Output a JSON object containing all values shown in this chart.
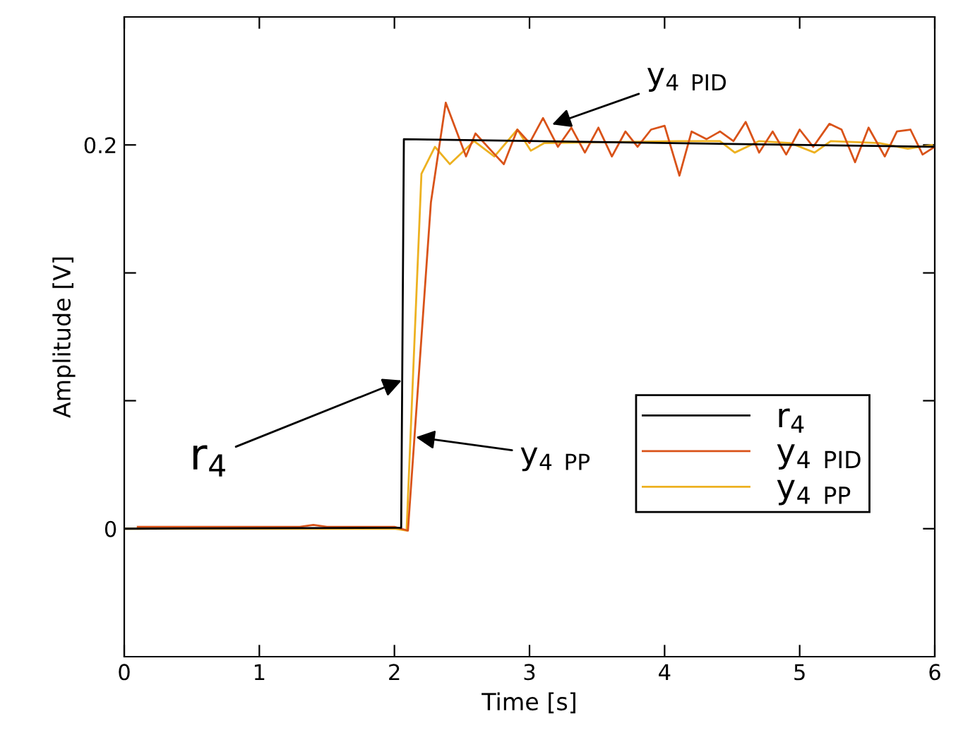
{
  "chart_data": {
    "type": "line",
    "xlabel": "Time [s]",
    "ylabel": "Amplitude [V]",
    "xlim": [
      0,
      6
    ],
    "ylim": [
      -0.0667,
      0.2667
    ],
    "xticks": [
      0,
      1,
      2,
      3,
      4,
      5,
      6
    ],
    "yticks": [
      0,
      {
        "value": 0.0667,
        "label": null
      },
      {
        "value": 0.1333,
        "label": null
      },
      0.2
    ],
    "grid": false,
    "legend": "bottom right",
    "marker": "none",
    "line_style": "solid",
    "series": [
      {
        "name": "r$_{4 }$",
        "color": "#000000",
        "x": [
          0,
          2.05,
          2.07,
          6
        ],
        "values": [
          0,
          0.0005,
          0.203,
          0.199
        ]
      },
      {
        "name": "y$_{4 PID}$",
        "color": "#d95319",
        "x": [
          0.1,
          1.3,
          1.4,
          1.5,
          1.8,
          2.0,
          2.1,
          2.27,
          2.38,
          2.53,
          2.6,
          2.73,
          2.81,
          2.91,
          3.0,
          3.1,
          3.21,
          3.31,
          3.41,
          3.51,
          3.61,
          3.71,
          3.8,
          3.9,
          4.0,
          4.11,
          4.2,
          4.31,
          4.41,
          4.51,
          4.6,
          4.7,
          4.8,
          4.9,
          5.0,
          5.1,
          5.22,
          5.31,
          5.41,
          5.51,
          5.63,
          5.72,
          5.82,
          5.91,
          6.0
        ],
        "values": [
          0.001,
          0.001,
          0.002,
          0.001,
          0.001,
          0.001,
          -0.001,
          0.17,
          0.222,
          0.194,
          0.206,
          0.196,
          0.19,
          0.208,
          0.201,
          0.214,
          0.199,
          0.209,
          0.196,
          0.209,
          0.194,
          0.207,
          0.199,
          0.208,
          0.21,
          0.184,
          0.207,
          0.203,
          0.207,
          0.202,
          0.212,
          0.196,
          0.207,
          0.195,
          0.208,
          0.199,
          0.211,
          0.208,
          0.191,
          0.209,
          0.194,
          0.207,
          0.208,
          0.195,
          0.199
        ]
      },
      {
        "name": "y$_{4 PP}$",
        "color": "#edb120",
        "x": [
          0,
          2.0,
          2.09,
          2.2,
          2.3,
          2.41,
          2.59,
          2.74,
          2.91,
          3.01,
          3.11,
          4.1,
          4.41,
          4.52,
          4.7,
          4.93,
          5.11,
          5.23,
          5.59,
          5.8,
          5.98
        ],
        "values": [
          0,
          0,
          -0.001,
          0.185,
          0.199,
          0.19,
          0.202,
          0.194,
          0.208,
          0.197,
          0.201,
          0.202,
          0.202,
          0.196,
          0.202,
          0.201,
          0.196,
          0.202,
          0.201,
          0.198,
          0.2
        ]
      }
    ],
    "annotations": [
      {
        "text": "r$_{4}$",
        "x": 2.08,
        "y": 0.078
      },
      {
        "text": "y$_{4 PID}$",
        "x": 3.14,
        "y": 0.21
      },
      {
        "text": "y$_{4 PP}$",
        "x": 2.13,
        "y": 0.048
      }
    ]
  }
}
